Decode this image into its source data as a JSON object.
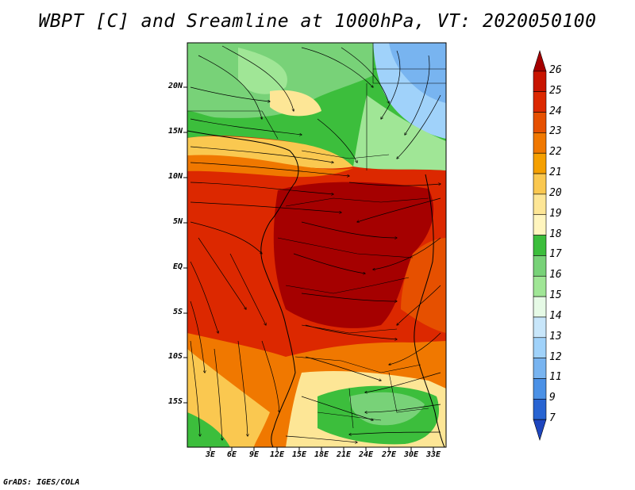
{
  "title": "WBPT [C] and Sreamline at 1000hPa, VT: 2020050100",
  "credit": "GrADS: IGES/COLA",
  "map": {
    "y_ticks": [
      "20N",
      "15N",
      "10N",
      "5N",
      "EQ",
      "5S",
      "10S",
      "15S"
    ],
    "x_ticks": [
      "3E",
      "6E",
      "9E",
      "12E",
      "15E",
      "18E",
      "21E",
      "24E",
      "27E",
      "30E",
      "33E"
    ]
  },
  "colorbar": {
    "labels": [
      "26",
      "25",
      "24",
      "23",
      "22",
      "21",
      "20",
      "19",
      "18",
      "17",
      "16",
      "15",
      "14",
      "13",
      "12",
      "11",
      "9",
      "7"
    ],
    "colors": [
      "#a50000",
      "#c81400",
      "#dc2800",
      "#e65000",
      "#f07800",
      "#f5a000",
      "#fac850",
      "#fde696",
      "#fff5be",
      "#3cbe3c",
      "#78d278",
      "#a0e696",
      "#e6fae6",
      "#c8e6fa",
      "#a0d2fa",
      "#78b4f0",
      "#4b91e6",
      "#2864d2",
      "#1e46be"
    ]
  }
}
